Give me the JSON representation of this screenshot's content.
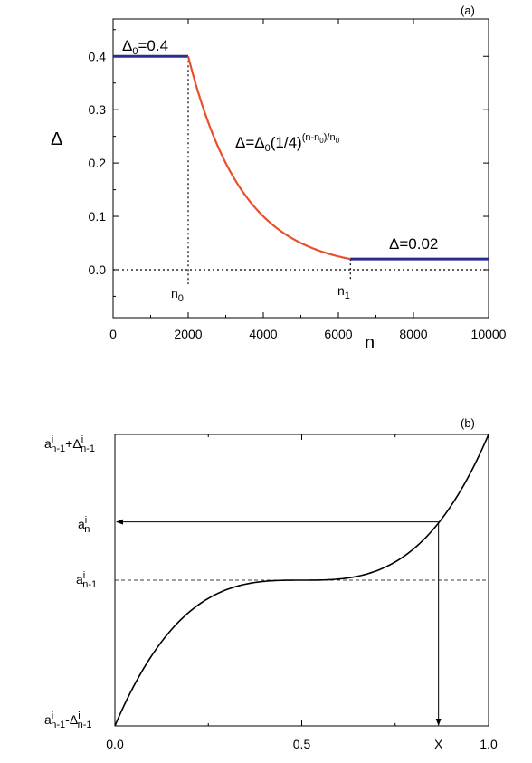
{
  "chart_data": [
    {
      "type": "line",
      "panel_label": "(a)",
      "xlabel": "n",
      "ylabel": "Δ",
      "xlim": [
        0,
        10000
      ],
      "ylim": [
        -0.09,
        0.47
      ],
      "xticks": [
        0,
        2000,
        4000,
        6000,
        8000,
        10000
      ],
      "xtick_labels": [
        "0",
        "2000",
        "4000",
        "6000",
        "8000",
        "10000"
      ],
      "yticks": [
        0.0,
        0.1,
        0.2,
        0.3,
        0.4
      ],
      "ytick_labels": [
        "0.0",
        "0.1",
        "0.2",
        "0.3",
        "0.4"
      ],
      "colors": {
        "constant": "#2a2f8f",
        "decay": "#e8502a",
        "axes": "#000000"
      },
      "series": [
        {
          "values": [
            [
              0,
              0.4
            ],
            [
              2000,
              0.4
            ]
          ]
        },
        {
          "equation": "Δ = 0.4·(1/4)^((n-2000)/2000)",
          "x_range": [
            2000,
            6320
          ]
        },
        {
          "values": [
            [
              6320,
              0.02
            ],
            [
              10000,
              0.02
            ]
          ]
        }
      ],
      "guides": {
        "n0": 2000,
        "n1": 6320,
        "zero_line": 0
      },
      "annotations": {
        "delta0": {
          "base": "Δ",
          "sub": "0",
          "rest": "=0.4"
        },
        "formula": {
          "lhs": "Δ=Δ",
          "sub": "0",
          "body": "(1/4)",
          "sup_main": "(n-n",
          "sup_sub": "0",
          "sup_tail": ")/n",
          "sup_sub2": "0"
        },
        "delta_end": "Δ=0.02",
        "n0": {
          "base": "n",
          "sub": "0"
        },
        "n1": {
          "base": "n",
          "sub": "1"
        }
      }
    },
    {
      "type": "line",
      "panel_label": "(b)",
      "xlim": [
        0,
        1
      ],
      "ylim": [
        -1,
        1
      ],
      "xticks": [
        0,
        0.5,
        1.0
      ],
      "xtick_labels": [
        "0.0",
        "0.5",
        "1.0"
      ],
      "x_marker": {
        "label": "X",
        "value": 0.866
      },
      "curve": "y = (2x-1)^3, x in [0,1]",
      "mid_level": 0,
      "level_an": 0.4,
      "y_labels": {
        "top": {
          "a": "a",
          "sup": "i",
          "sub": "n-1",
          "op": "+",
          "d": "Δ",
          "dsup": "i",
          "dsub": "n-1"
        },
        "an": {
          "a": "a",
          "sup": "i",
          "sub": "n"
        },
        "mid": {
          "a": "a",
          "sup": "i",
          "sub": "n-1"
        },
        "bottom": {
          "a": "a",
          "sup": "i",
          "sub": "n-1",
          "op": "-",
          "d": "Δ",
          "dsup": "i",
          "dsub": "n-1"
        }
      }
    }
  ]
}
